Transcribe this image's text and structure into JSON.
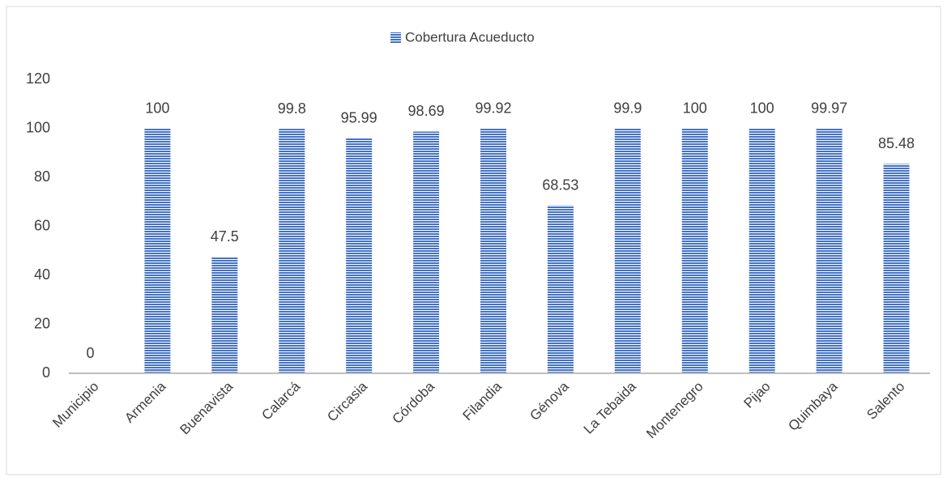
{
  "chart_data": {
    "type": "bar",
    "legend": "Cobertura Acueducto",
    "categories": [
      "Municipio",
      "Armenia",
      "Buenavista",
      "Calarcá",
      "Circasia",
      "Córdoba",
      "Filandia",
      "Génova",
      "La Tebaida",
      "Montenegro",
      "Pijao",
      "Quimbaya",
      "Salento"
    ],
    "values": [
      0,
      100,
      47.5,
      99.8,
      95.99,
      98.69,
      99.92,
      68.53,
      99.9,
      100,
      100,
      99.97,
      85.48
    ],
    "color": "#4472c4",
    "ylim": [
      0,
      120
    ],
    "yticks": [
      0,
      20,
      40,
      60,
      80,
      100,
      120
    ],
    "grid": false
  }
}
